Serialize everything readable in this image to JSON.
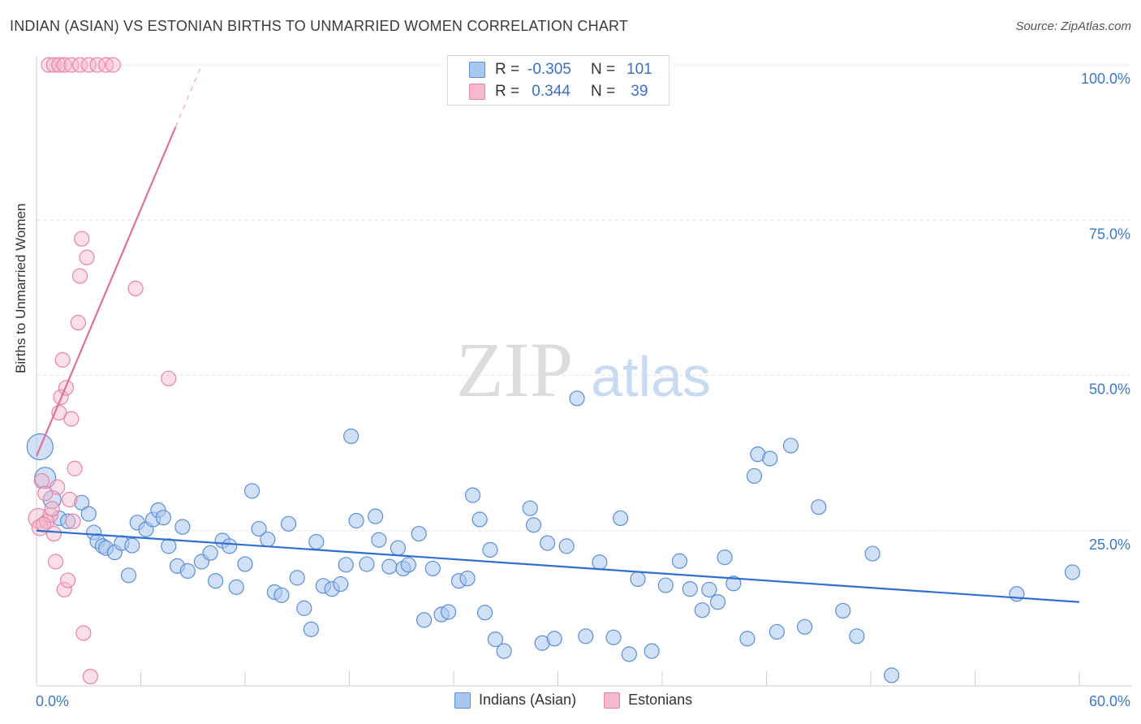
{
  "title": "INDIAN (ASIAN) VS ESTONIAN BIRTHS TO UNMARRIED WOMEN CORRELATION CHART",
  "source": "Source: ZipAtlas.com",
  "watermark": {
    "zip": "ZIP",
    "atlas": "atlas"
  },
  "colors": {
    "blue": "#5b8fd6",
    "blue_fill": "#a9c6ee",
    "blue_line": "#2f6fd1",
    "pink": "#e882a8",
    "pink_fill": "#f5b8cc",
    "pink_line": "#e06f9c",
    "tick_text": "#3b78c8"
  },
  "stats": {
    "rows": [
      {
        "r_label": "R = ",
        "r_value": "-0.305",
        "n_label": "N = ",
        "n_value": "101"
      },
      {
        "r_label": "R = ",
        "r_value": "0.344",
        "n_label": "N = ",
        "n_value": "39"
      }
    ]
  },
  "legend": {
    "series1": "Indians (Asian)",
    "series2": "Estonians"
  },
  "chart_data": {
    "type": "scatter",
    "xlabel": "",
    "ylabel": "Births to Unmarried Women",
    "xlim": [
      0,
      60
    ],
    "ylim": [
      0,
      100
    ],
    "x_tick_labels": {
      "min": "0.0%",
      "max": "60.0%"
    },
    "y_tick_labels": [
      {
        "value": 25,
        "label": "25.0%"
      },
      {
        "value": 50,
        "label": "50.0%"
      },
      {
        "value": 75,
        "label": "75.0%"
      },
      {
        "value": 100,
        "label": "100.0%"
      }
    ],
    "series": [
      {
        "name": "Indians (Asian)",
        "trend": {
          "x0": 0,
          "y0": 25.0,
          "x1": 60,
          "y1": 13.5
        },
        "points": [
          [
            0.2,
            38.5,
            16
          ],
          [
            0.5,
            33.5,
            13
          ],
          [
            0.9,
            30,
            11
          ],
          [
            1.3,
            27,
            9
          ],
          [
            1.8,
            26.5,
            9
          ],
          [
            2.6,
            29.5,
            9
          ],
          [
            3.0,
            27.7,
            9
          ],
          [
            3.3,
            24.7,
            9
          ],
          [
            3.5,
            23.3,
            9
          ],
          [
            3.8,
            22.5,
            9
          ],
          [
            4.0,
            22.2,
            9
          ],
          [
            4.5,
            21.5,
            9
          ],
          [
            4.9,
            23.0,
            9
          ],
          [
            5.3,
            17.8,
            9
          ],
          [
            5.5,
            22.6,
            9
          ],
          [
            5.8,
            26.3,
            9
          ],
          [
            6.3,
            25.2,
            9
          ],
          [
            6.7,
            26.8,
            9
          ],
          [
            7.0,
            28.3,
            9
          ],
          [
            7.3,
            27.1,
            9
          ],
          [
            7.6,
            22.5,
            9
          ],
          [
            8.1,
            19.3,
            9
          ],
          [
            8.4,
            25.6,
            9
          ],
          [
            8.7,
            18.5,
            9
          ],
          [
            9.5,
            20.0,
            9
          ],
          [
            10.0,
            21.4,
            9
          ],
          [
            10.3,
            16.9,
            9
          ],
          [
            10.7,
            23.4,
            9
          ],
          [
            11.1,
            22.5,
            9
          ],
          [
            11.5,
            15.9,
            9
          ],
          [
            12.0,
            19.6,
            9
          ],
          [
            12.4,
            31.4,
            9
          ],
          [
            12.8,
            25.3,
            9
          ],
          [
            13.3,
            23.6,
            9
          ],
          [
            13.7,
            15.1,
            9
          ],
          [
            14.1,
            14.6,
            9
          ],
          [
            14.5,
            26.1,
            9
          ],
          [
            15.0,
            17.4,
            9
          ],
          [
            15.4,
            12.5,
            9
          ],
          [
            15.8,
            9.1,
            9
          ],
          [
            16.1,
            23.2,
            9
          ],
          [
            16.5,
            16.1,
            9
          ],
          [
            17.0,
            15.6,
            9
          ],
          [
            17.5,
            16.4,
            9
          ],
          [
            17.8,
            19.5,
            9
          ],
          [
            18.1,
            40.2,
            9
          ],
          [
            18.4,
            26.6,
            9
          ],
          [
            19.0,
            19.6,
            9
          ],
          [
            19.5,
            27.3,
            9
          ],
          [
            19.7,
            23.5,
            9
          ],
          [
            20.3,
            19.2,
            9
          ],
          [
            20.8,
            22.2,
            9
          ],
          [
            21.1,
            18.9,
            9
          ],
          [
            21.4,
            19.5,
            9
          ],
          [
            22.0,
            24.5,
            9
          ],
          [
            22.3,
            10.6,
            9
          ],
          [
            22.8,
            18.9,
            9
          ],
          [
            23.3,
            11.5,
            9
          ],
          [
            23.7,
            11.9,
            9
          ],
          [
            24.3,
            16.9,
            9
          ],
          [
            24.8,
            17.3,
            9
          ],
          [
            25.1,
            30.7,
            9
          ],
          [
            25.5,
            26.8,
            9
          ],
          [
            25.8,
            11.8,
            9
          ],
          [
            26.1,
            21.9,
            9
          ],
          [
            26.4,
            7.5,
            9
          ],
          [
            26.9,
            5.6,
            9
          ],
          [
            28.4,
            28.6,
            9
          ],
          [
            28.6,
            25.9,
            9
          ],
          [
            29.1,
            6.9,
            9
          ],
          [
            29.4,
            23.0,
            9
          ],
          [
            29.8,
            7.6,
            9
          ],
          [
            30.5,
            22.5,
            9
          ],
          [
            31.1,
            46.3,
            9
          ],
          [
            31.6,
            8.0,
            9
          ],
          [
            32.4,
            19.9,
            9
          ],
          [
            33.2,
            7.8,
            9
          ],
          [
            33.6,
            27.0,
            9
          ],
          [
            34.1,
            5.1,
            9
          ],
          [
            34.6,
            17.2,
            9
          ],
          [
            35.4,
            5.6,
            9
          ],
          [
            36.2,
            16.2,
            9
          ],
          [
            37.0,
            20.1,
            9
          ],
          [
            37.6,
            15.6,
            9
          ],
          [
            38.3,
            12.2,
            9
          ],
          [
            38.7,
            15.5,
            9
          ],
          [
            39.2,
            13.5,
            9
          ],
          [
            39.6,
            20.7,
            9
          ],
          [
            40.1,
            16.5,
            9
          ],
          [
            40.9,
            7.6,
            9
          ],
          [
            41.5,
            37.3,
            9
          ],
          [
            41.3,
            33.8,
            9
          ],
          [
            42.2,
            36.6,
            9
          ],
          [
            42.6,
            8.7,
            9
          ],
          [
            43.4,
            38.7,
            9
          ],
          [
            44.2,
            9.5,
            9
          ],
          [
            45.0,
            28.8,
            9
          ],
          [
            46.4,
            12.1,
            9
          ],
          [
            47.2,
            8.0,
            9
          ],
          [
            48.1,
            21.3,
            9
          ],
          [
            49.2,
            1.7,
            9
          ],
          [
            56.4,
            14.8,
            9
          ],
          [
            59.6,
            18.3,
            9
          ]
        ]
      },
      {
        "name": "Estonians",
        "trend": {
          "x0": 0,
          "y0": 37.0,
          "x1": 8.0,
          "y1": 90.0,
          "dash_to_x": 9.5,
          "dash_to_y": 100.0
        },
        "points": [
          [
            0.1,
            27,
            12
          ],
          [
            0.2,
            25.5,
            10
          ],
          [
            0.3,
            33,
            9
          ],
          [
            0.5,
            31,
            9
          ],
          [
            0.6,
            26.5,
            9
          ],
          [
            0.8,
            27.5,
            9
          ],
          [
            0.9,
            28.5,
            9
          ],
          [
            1.0,
            24.5,
            9
          ],
          [
            1.1,
            20,
            9
          ],
          [
            1.2,
            32,
            9
          ],
          [
            1.3,
            44,
            9
          ],
          [
            1.4,
            46.5,
            9
          ],
          [
            1.5,
            52.5,
            9
          ],
          [
            1.6,
            15.5,
            9
          ],
          [
            1.7,
            48,
            9
          ],
          [
            1.8,
            17.0,
            9
          ],
          [
            1.9,
            30,
            9
          ],
          [
            2.0,
            43,
            9
          ],
          [
            2.1,
            26.5,
            9
          ],
          [
            2.2,
            35,
            9
          ],
          [
            2.4,
            58.5,
            9
          ],
          [
            2.5,
            66,
            9
          ],
          [
            2.6,
            72,
            9
          ],
          [
            2.7,
            8.5,
            9
          ],
          [
            2.9,
            69,
            9
          ],
          [
            3.1,
            1.5,
            9
          ],
          [
            0.7,
            100,
            9
          ],
          [
            1.0,
            100,
            9
          ],
          [
            1.3,
            100,
            9
          ],
          [
            1.6,
            100,
            9
          ],
          [
            2.0,
            100,
            9
          ],
          [
            2.5,
            100,
            9
          ],
          [
            3.0,
            100,
            9
          ],
          [
            3.5,
            100,
            9
          ],
          [
            4.0,
            100,
            9
          ],
          [
            4.4,
            100,
            9
          ],
          [
            5.7,
            64,
            9
          ],
          [
            7.6,
            49.5,
            9
          ],
          [
            0.4,
            26,
            9
          ]
        ]
      }
    ]
  }
}
